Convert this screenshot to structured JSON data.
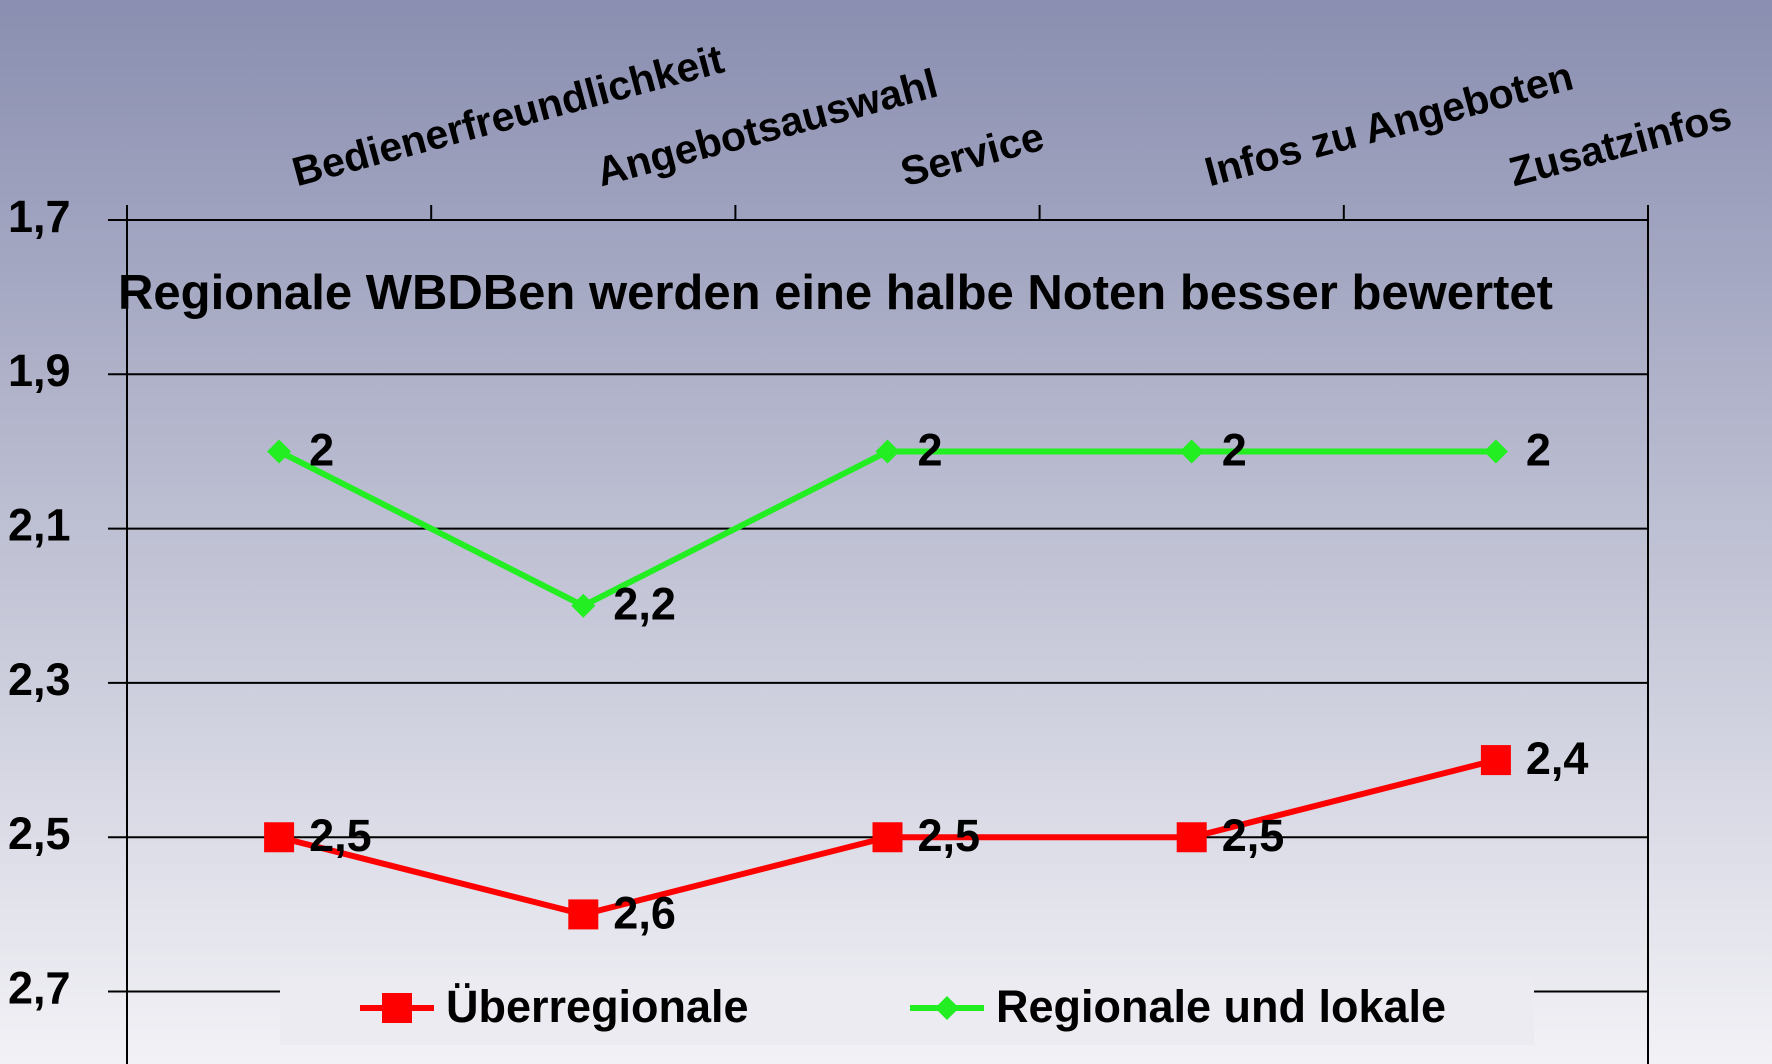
{
  "chart_data": {
    "type": "line",
    "annotation": "Regionale WBDBen werden eine halbe Noten besser bewertet",
    "categories": [
      "Bedienerfreundlichkeit",
      "Angebotsauswahl",
      "Service",
      "Infos zu Angeboten",
      "Zusatzinfos"
    ],
    "series": [
      {
        "name": "Überregionale",
        "color": "#ff0000",
        "marker": "square",
        "values": [
          2.5,
          2.6,
          2.5,
          2.5,
          2.4
        ],
        "value_labels": [
          "2,5",
          "2,6",
          "2,5",
          "2,5",
          "2,4"
        ]
      },
      {
        "name": "Regionale und lokale",
        "color": "#22ee22",
        "marker": "diamond",
        "values": [
          2,
          2.2,
          2,
          2,
          2
        ],
        "value_labels": [
          "2",
          "2,2",
          "2",
          "2",
          "2"
        ]
      }
    ],
    "ylim": [
      1.7,
      2.79
    ],
    "y_inverted": true,
    "yticks": [
      {
        "value": 1.7,
        "label": "1,7"
      },
      {
        "value": 1.9,
        "label": "1,9"
      },
      {
        "value": 2.1,
        "label": "2,1"
      },
      {
        "value": 2.3,
        "label": "2,3"
      },
      {
        "value": 2.5,
        "label": "2,5"
      },
      {
        "value": 2.7,
        "label": "2,7"
      }
    ],
    "grid": true,
    "legend": "bottom"
  }
}
